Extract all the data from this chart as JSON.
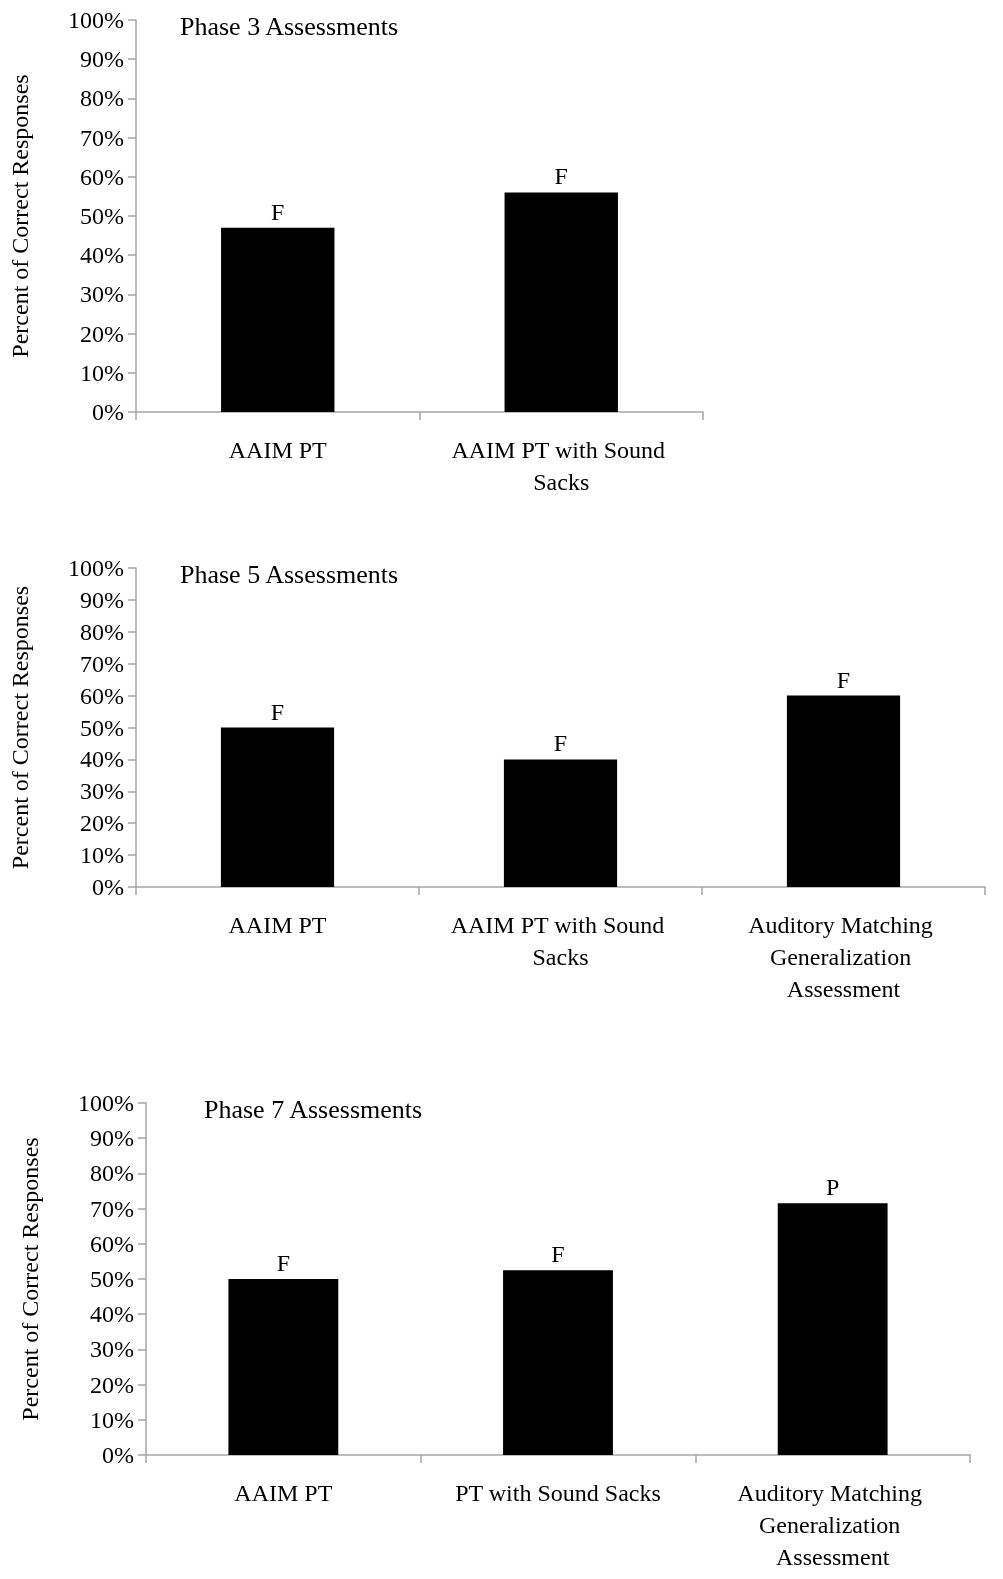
{
  "chart_data": [
    {
      "type": "bar",
      "title": "Phase 3 Assessments",
      "ylabel": "Percent of Correct Responses",
      "categories": [
        "AAIM PT",
        "AAIM PT with Sound Sacks"
      ],
      "values": [
        47,
        56
      ],
      "value_labels": [
        "F",
        "F"
      ],
      "color": "#000000",
      "ylim": [
        0,
        100
      ],
      "yticks": [
        {
          "value": 0,
          "label": "0%"
        },
        {
          "value": 10,
          "label": "10%"
        },
        {
          "value": 20,
          "label": "20%"
        },
        {
          "value": 30,
          "label": "30%"
        },
        {
          "value": 40,
          "label": "40%"
        },
        {
          "value": 50,
          "label": "50%"
        },
        {
          "value": 60,
          "label": "60%"
        },
        {
          "value": 70,
          "label": "70%"
        },
        {
          "value": 80,
          "label": "80%"
        },
        {
          "value": 90,
          "label": "90%"
        },
        {
          "value": 100,
          "label": "100%"
        }
      ],
      "grid": false
    },
    {
      "type": "bar",
      "title": "Phase 5 Assessments",
      "ylabel": "Percent of Correct Responses",
      "categories": [
        "AAIM PT",
        "AAIM PT with Sound Sacks",
        "Auditory Matching Generalization Assessment"
      ],
      "values": [
        50,
        40,
        60
      ],
      "value_labels": [
        "F",
        "F",
        "F"
      ],
      "color": "#000000",
      "ylim": [
        0,
        100
      ],
      "yticks": [
        {
          "value": 0,
          "label": "0%"
        },
        {
          "value": 10,
          "label": "10%"
        },
        {
          "value": 20,
          "label": "20%"
        },
        {
          "value": 30,
          "label": "30%"
        },
        {
          "value": 40,
          "label": "40%"
        },
        {
          "value": 50,
          "label": "50%"
        },
        {
          "value": 60,
          "label": "60%"
        },
        {
          "value": 70,
          "label": "70%"
        },
        {
          "value": 80,
          "label": "80%"
        },
        {
          "value": 90,
          "label": "90%"
        },
        {
          "value": 100,
          "label": "100%"
        }
      ],
      "grid": false
    },
    {
      "type": "bar",
      "title": "Phase 7 Assessments",
      "ylabel": "Percent of Correct Responses",
      "categories": [
        "AAIM PT",
        "PT with Sound Sacks",
        "Auditory Matching Generalization Assessment"
      ],
      "values": [
        50,
        52.5,
        71.5
      ],
      "value_labels": [
        "F",
        "F",
        "P"
      ],
      "color": "#000000",
      "ylim": [
        0,
        100
      ],
      "yticks": [
        {
          "value": 0,
          "label": "0%"
        },
        {
          "value": 10,
          "label": "10%"
        },
        {
          "value": 20,
          "label": "20%"
        },
        {
          "value": 30,
          "label": "30%"
        },
        {
          "value": 40,
          "label": "40%"
        },
        {
          "value": 50,
          "label": "50%"
        },
        {
          "value": 60,
          "label": "60%"
        },
        {
          "value": 70,
          "label": "70%"
        },
        {
          "value": 80,
          "label": "80%"
        },
        {
          "value": 90,
          "label": "90%"
        },
        {
          "value": 100,
          "label": "100%"
        }
      ],
      "grid": false
    }
  ]
}
